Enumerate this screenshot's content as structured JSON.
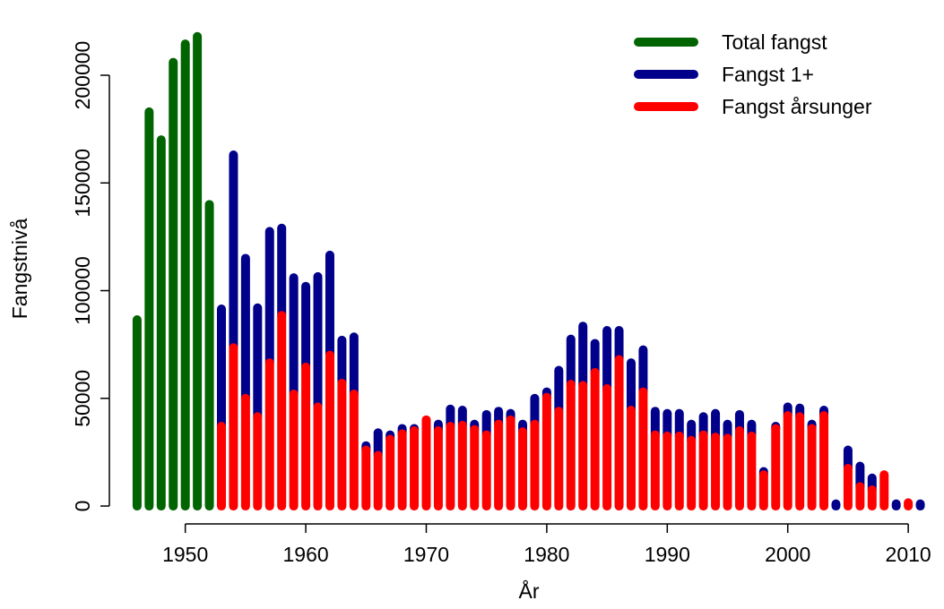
{
  "chart_data": {
    "type": "bar",
    "stacked": true,
    "x_label": "År",
    "y_label": "Fangstnivå",
    "x": [
      1946,
      1947,
      1948,
      1949,
      1950,
      1951,
      1952,
      1953,
      1954,
      1955,
      1956,
      1957,
      1958,
      1959,
      1960,
      1961,
      1962,
      1963,
      1964,
      1965,
      1966,
      1967,
      1968,
      1969,
      1970,
      1971,
      1972,
      1973,
      1974,
      1975,
      1976,
      1977,
      1978,
      1979,
      1980,
      1981,
      1982,
      1983,
      1984,
      1985,
      1986,
      1987,
      1988,
      1989,
      1990,
      1991,
      1992,
      1993,
      1994,
      1995,
      1996,
      1997,
      1998,
      1999,
      2000,
      2001,
      2002,
      2003,
      2004,
      2005,
      2006,
      2007,
      2008,
      2009,
      2010,
      2011
    ],
    "series": [
      {
        "name": "Total fangst",
        "color": "#006400",
        "values": [
          86500,
          183000,
          170000,
          206000,
          214500,
          218000,
          140000,
          null,
          null,
          null,
          null,
          null,
          null,
          null,
          null,
          null,
          null,
          null,
          null,
          null,
          null,
          null,
          null,
          null,
          null,
          null,
          null,
          null,
          null,
          null,
          null,
          null,
          null,
          null,
          null,
          null,
          null,
          null,
          null,
          null,
          null,
          null,
          null,
          null,
          null,
          null,
          null,
          null,
          null,
          null,
          null,
          null,
          null,
          null,
          null,
          null,
          null,
          null,
          null,
          null,
          null,
          null,
          null,
          null,
          null,
          null
        ]
      },
      {
        "name": "Fangst 1+",
        "color": "#00008b",
        "values": [
          null,
          null,
          null,
          null,
          null,
          null,
          null,
          54500,
          89500,
          65000,
          50500,
          61000,
          40500,
          54000,
          37500,
          60500,
          46500,
          20000,
          26500,
          2000,
          10500,
          2000,
          2500,
          1000,
          null,
          3000,
          8000,
          7000,
          2500,
          9500,
          6000,
          3000,
          3500,
          12000,
          2500,
          19000,
          21000,
          27500,
          13500,
          27000,
          13500,
          22000,
          19500,
          11000,
          10500,
          10500,
          7500,
          8500,
          11000,
          6500,
          7500,
          5500,
          1500,
          1000,
          4000,
          4000,
          2000,
          2500,
          1000,
          8500,
          9500,
          5500,
          null,
          1000,
          null,
          1000
        ]
      },
      {
        "name": "Fangst årsunger",
        "color": "#ff0000",
        "values": [
          null,
          null,
          null,
          null,
          null,
          null,
          null,
          37000,
          73500,
          50000,
          41500,
          66500,
          88500,
          52000,
          64500,
          46000,
          70000,
          57000,
          52000,
          26000,
          23500,
          31000,
          33500,
          35000,
          40000,
          35000,
          37000,
          37500,
          35500,
          33000,
          38000,
          40000,
          34500,
          38000,
          50500,
          44000,
          56500,
          56000,
          62000,
          54500,
          68000,
          44500,
          53000,
          33000,
          32500,
          32500,
          30500,
          33000,
          32000,
          31500,
          35000,
          32500,
          14500,
          36000,
          42000,
          41500,
          36000,
          42000,
          null,
          17500,
          9000,
          7500,
          14500,
          null,
          1500,
          null
        ]
      }
    ],
    "xlim": [
      1943.7,
      2012
    ],
    "ylim": [
      -8300,
      228700
    ],
    "xticks": [
      1950,
      1960,
      1970,
      1980,
      1990,
      2000,
      2010
    ],
    "yticks": [
      0,
      50000,
      100000,
      150000,
      200000
    ],
    "legend": "top-right"
  }
}
